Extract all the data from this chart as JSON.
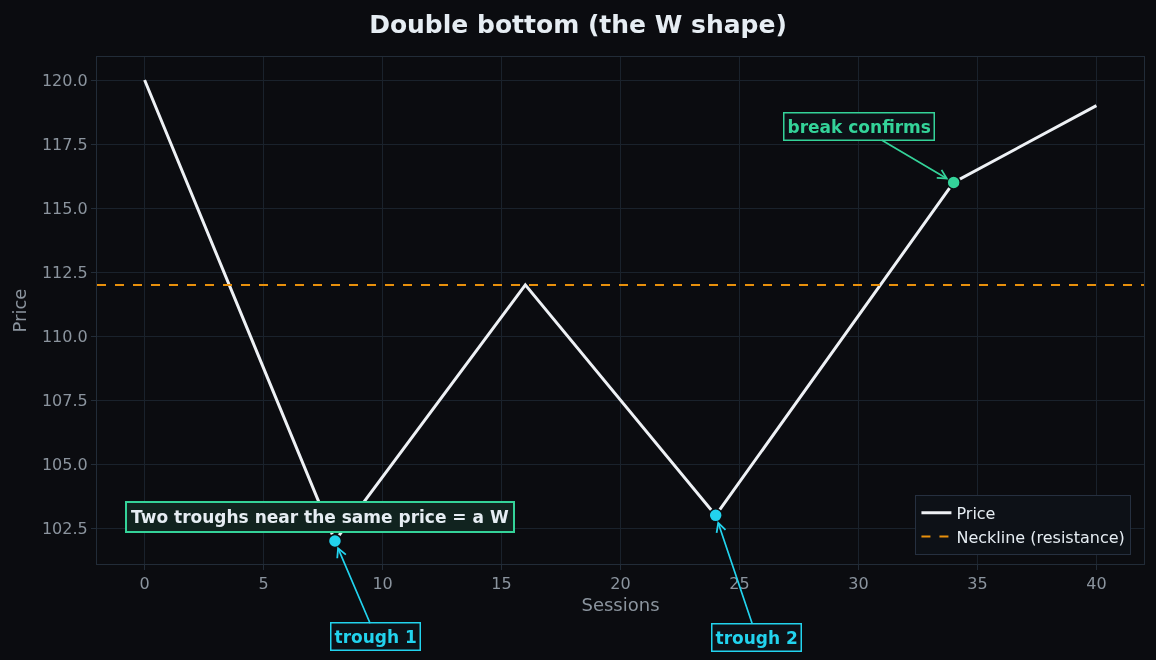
{
  "chart_data": {
    "type": "line",
    "title": "Double bottom (the W shape)",
    "xlabel": "Sessions",
    "ylabel": "Price",
    "xlim": [
      -2,
      42
    ],
    "xticks": [
      0,
      5,
      10,
      15,
      20,
      25,
      30,
      35,
      40
    ],
    "ylim": [
      101.1,
      120.9
    ],
    "yticks": [
      102.5,
      {
        "value": 105,
        "label": "105.0"
      },
      107.5,
      {
        "value": 110,
        "label": "110.0"
      },
      112.5,
      {
        "value": 115,
        "label": "115.0"
      },
      117.5,
      {
        "value": 120,
        "label": "120.0"
      }
    ],
    "series": [
      {
        "name": "Price",
        "color": "#eef1f5",
        "x": [
          0,
          8,
          16,
          24,
          34,
          40
        ],
        "values": [
          120,
          102,
          112,
          103,
          116,
          119
        ]
      },
      {
        "type": "scatter",
        "x": [
          8,
          24,
          34
        ],
        "values": [
          102,
          103,
          116
        ],
        "colors": [
          "#22d3ee",
          "#22d3ee",
          "#34d399"
        ],
        "marker": "circle"
      }
    ],
    "ref_lines": [
      {
        "axis": "y",
        "value": 112,
        "label": "Neckline (resistance)",
        "color": "#e8900c",
        "line_style": "dashed"
      }
    ],
    "annotations": [
      {
        "text": "trough 1",
        "x": 8,
        "y": 102
      },
      {
        "text": "trough 2",
        "x": 24,
        "y": 103
      },
      {
        "text": "break confirms",
        "x": 34,
        "y": 116
      },
      "Two troughs near the same price = a W"
    ],
    "grid": true,
    "legend": "bottom right",
    "marker": "none"
  }
}
